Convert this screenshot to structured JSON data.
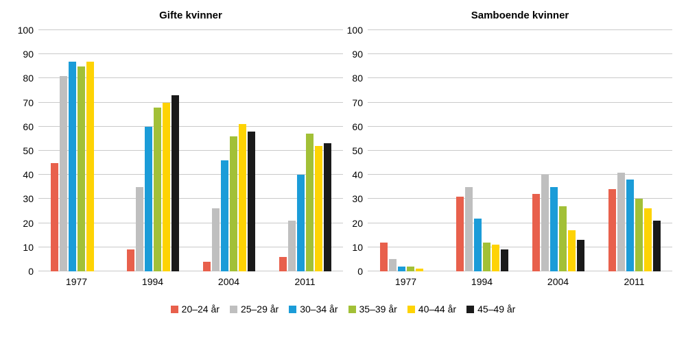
{
  "chart_data": [
    {
      "type": "bar",
      "title": "Gifte kvinner",
      "categories": [
        "1977",
        "1994",
        "2004",
        "2011"
      ],
      "series": [
        {
          "name": "20–24 år",
          "color": "#e8604c",
          "values": [
            45,
            9,
            4,
            6
          ]
        },
        {
          "name": "25–29 år",
          "color": "#bfbfbf",
          "values": [
            81,
            35,
            26,
            21
          ]
        },
        {
          "name": "30–34 år",
          "color": "#1b9cd8",
          "values": [
            87,
            60,
            46,
            40
          ]
        },
        {
          "name": "35–39 år",
          "color": "#a2c037",
          "values": [
            85,
            68,
            56,
            57
          ]
        },
        {
          "name": "40–44 år",
          "color": "#fed304",
          "values": [
            87,
            70,
            61,
            52
          ]
        },
        {
          "name": "45–49 år",
          "color": "#1a1a1a",
          "values": [
            null,
            73,
            58,
            53
          ]
        }
      ],
      "ylim": [
        0,
        100
      ],
      "yticks": [
        0,
        10,
        20,
        30,
        40,
        50,
        60,
        70,
        80,
        90,
        100
      ],
      "xlabel": "",
      "ylabel": "",
      "grid": true,
      "legend_position": "bottom-shared"
    },
    {
      "type": "bar",
      "title": "Samboende kvinner",
      "categories": [
        "1977",
        "1994",
        "2004",
        "2011"
      ],
      "series": [
        {
          "name": "20–24 år",
          "color": "#e8604c",
          "values": [
            12,
            31,
            32,
            34
          ]
        },
        {
          "name": "25–29 år",
          "color": "#bfbfbf",
          "values": [
            5,
            35,
            40,
            41
          ]
        },
        {
          "name": "30–34 år",
          "color": "#1b9cd8",
          "values": [
            2,
            22,
            35,
            38
          ]
        },
        {
          "name": "35–39 år",
          "color": "#a2c037",
          "values": [
            2,
            12,
            27,
            30
          ]
        },
        {
          "name": "40–44 år",
          "color": "#fed304",
          "values": [
            1,
            11,
            17,
            26
          ]
        },
        {
          "name": "45–49 år",
          "color": "#1a1a1a",
          "values": [
            null,
            9,
            13,
            21
          ]
        }
      ],
      "ylim": [
        0,
        100
      ],
      "yticks": [
        0,
        10,
        20,
        30,
        40,
        50,
        60,
        70,
        80,
        90,
        100
      ],
      "xlabel": "",
      "ylabel": "",
      "grid": true,
      "legend_position": "bottom-shared"
    }
  ],
  "legend": {
    "items": [
      {
        "label": "20–24 år",
        "color": "#e8604c"
      },
      {
        "label": "25–29 år",
        "color": "#bfbfbf"
      },
      {
        "label": "30–34 år",
        "color": "#1b9cd8"
      },
      {
        "label": "35–39 år",
        "color": "#a2c037"
      },
      {
        "label": "40–44 år",
        "color": "#fed304"
      },
      {
        "label": "45–49 år",
        "color": "#1a1a1a"
      }
    ]
  },
  "colors": {
    "gridline": "#c9c9c9",
    "background": "#ffffff",
    "text": "#000000"
  }
}
